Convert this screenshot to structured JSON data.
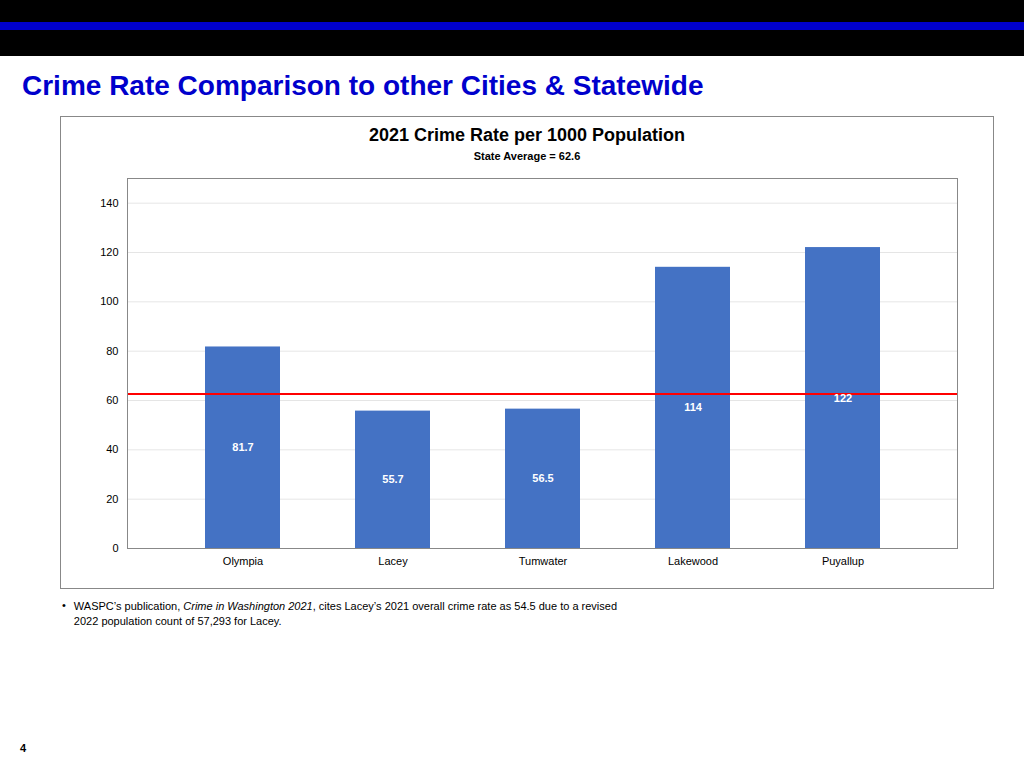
{
  "chart_data": {
    "type": "bar",
    "page_title": "Crime Rate Comparison to other Cities & Statewide",
    "title": "2021 Crime Rate per 1000 Population",
    "subtitle": "State Average = 62.6",
    "categories": [
      "Olympia",
      "Lacey",
      "Tumwater",
      "Lakewood",
      "Puyallup"
    ],
    "values": [
      81.7,
      55.7,
      56.5,
      114,
      122
    ],
    "color": "#4472C4",
    "lines": [
      {
        "value": 62.6,
        "color": "#FF0000"
      }
    ],
    "ylim": [
      0,
      150
    ],
    "yticks": [
      0,
      20,
      40,
      60,
      80,
      100,
      120,
      140
    ],
    "grid": true,
    "data_labels": true,
    "footnote_bullet": "•",
    "footnote": [
      "WASPC’s publication, ",
      "Crime in Washington 2021",
      ", cites Lacey’s 2021 overall crime rate as 54.5 due to a revised\n2022 population count of 57,293 for Lacey."
    ],
    "page_number": "4"
  }
}
